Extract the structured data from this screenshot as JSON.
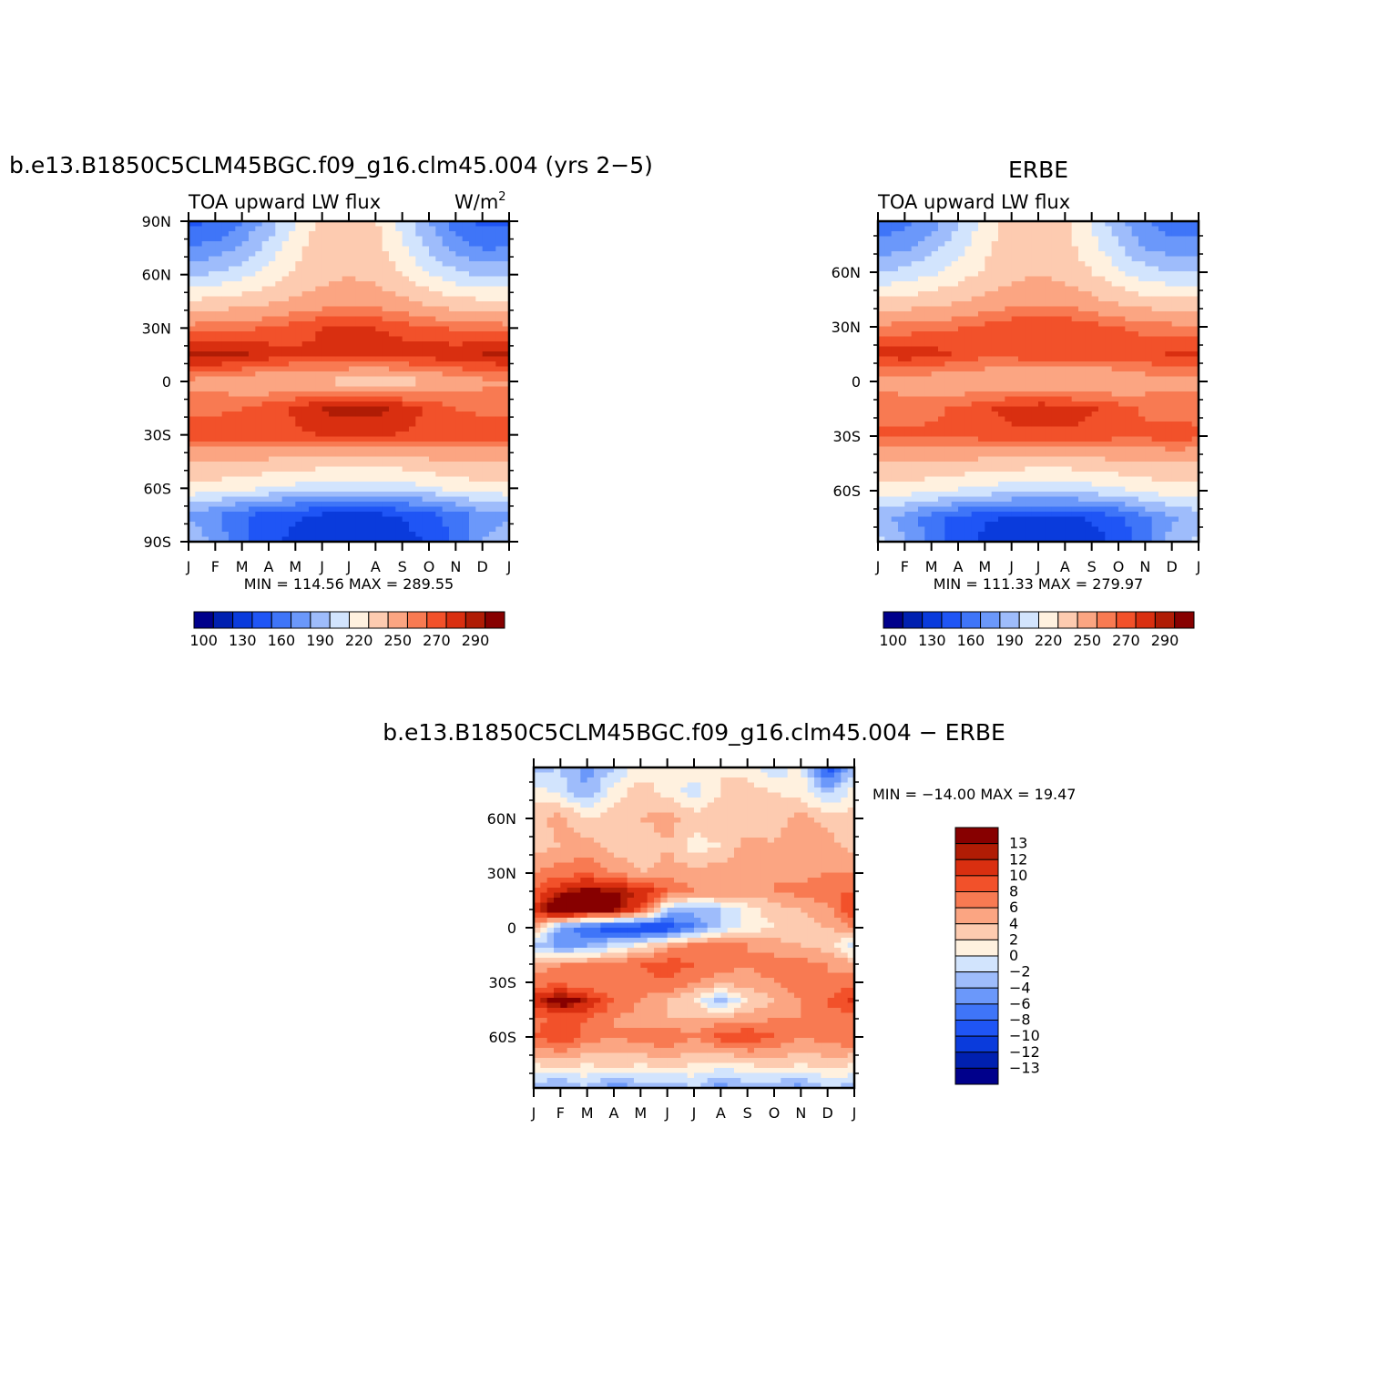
{
  "palette": [
    "#00008b",
    "#0020b0",
    "#0a3bdc",
    "#1f55f5",
    "#3f75f8",
    "#6b98fa",
    "#9ebcfb",
    "#d2e4fd",
    "#fff1df",
    "#fdcbb0",
    "#fba582",
    "#f87a52",
    "#f2512a",
    "#d92f10",
    "#b01c05",
    "#870000"
  ],
  "chart_data": [
    {
      "id": "model",
      "type": "heatmap",
      "title": "b.e13.B1850C5CLM45BGC.f09_g16.clm45.004 (yrs 2−5)",
      "subtitle_left": "TOA upward LW flux",
      "subtitle_right": "W/m",
      "subtitle_right_sup": "2",
      "x_tick_labels": [
        "J",
        "F",
        "M",
        "A",
        "M",
        "J",
        "J",
        "A",
        "S",
        "O",
        "N",
        "D",
        "J"
      ],
      "y_tick_labels": [
        "90N",
        "60N",
        "30N",
        "0",
        "30S",
        "60S",
        "90S"
      ],
      "y_tick_values": [
        90,
        60,
        30,
        0,
        -30,
        -60,
        -90
      ],
      "ylim": [
        -90,
        90
      ],
      "stats_text": "MIN = 114.56 MAX = 289.55",
      "min": 114.56,
      "max": 289.55,
      "colorbar_levels": [
        100,
        115,
        130,
        145,
        160,
        175,
        190,
        205,
        220,
        235,
        250,
        260,
        270,
        280,
        290
      ],
      "colorbar_labels": [
        "100",
        "130",
        "160",
        "190",
        "220",
        "250",
        "270",
        "290"
      ],
      "rows": [
        {
          "lat": 90,
          "values": [
            140,
            145,
            160,
            180,
            205,
            225,
            230,
            222,
            200,
            175,
            152,
            140,
            140
          ]
        },
        {
          "lat": 75,
          "values": [
            160,
            165,
            178,
            195,
            215,
            228,
            232,
            226,
            208,
            188,
            168,
            158,
            160
          ]
        },
        {
          "lat": 60,
          "values": [
            188,
            192,
            200,
            210,
            222,
            230,
            234,
            230,
            220,
            206,
            194,
            188,
            188
          ]
        },
        {
          "lat": 45,
          "values": [
            222,
            224,
            228,
            232,
            238,
            243,
            246,
            244,
            238,
            230,
            225,
            222,
            222
          ]
        },
        {
          "lat": 30,
          "values": [
            255,
            256,
            258,
            261,
            265,
            270,
            272,
            270,
            266,
            262,
            258,
            256,
            255
          ]
        },
        {
          "lat": 15,
          "values": [
            283,
            285,
            282,
            276,
            272,
            273,
            275,
            276,
            276,
            276,
            278,
            281,
            283
          ]
        },
        {
          "lat": 0,
          "values": [
            247,
            244,
            240,
            236,
            236,
            233,
            228,
            226,
            228,
            235,
            243,
            247,
            247
          ]
        },
        {
          "lat": -15,
          "values": [
            258,
            258,
            260,
            265,
            272,
            281,
            286,
            285,
            277,
            267,
            260,
            258,
            258
          ]
        },
        {
          "lat": -30,
          "values": [
            265,
            266,
            266,
            266,
            268,
            270,
            271,
            271,
            269,
            267,
            266,
            265,
            265
          ]
        },
        {
          "lat": -45,
          "values": [
            235,
            235,
            234,
            232,
            230,
            228,
            227,
            227,
            229,
            232,
            234,
            235,
            235
          ]
        },
        {
          "lat": -60,
          "values": [
            215,
            213,
            210,
            205,
            200,
            197,
            195,
            195,
            198,
            203,
            210,
            214,
            215
          ]
        },
        {
          "lat": -75,
          "values": [
            172,
            160,
            148,
            138,
            132,
            128,
            126,
            127,
            131,
            138,
            152,
            166,
            172
          ]
        },
        {
          "lat": -90,
          "values": [
            188,
            172,
            150,
            135,
            125,
            120,
            118,
            119,
            124,
            132,
            150,
            175,
            188
          ]
        }
      ]
    },
    {
      "id": "obs",
      "type": "heatmap",
      "title": "ERBE",
      "subtitle_left": "TOA upward LW flux",
      "x_tick_labels": [
        "J",
        "F",
        "M",
        "A",
        "M",
        "J",
        "J",
        "A",
        "S",
        "O",
        "N",
        "D",
        "J"
      ],
      "y_tick_labels": [
        "60N",
        "30N",
        "0",
        "30S",
        "60S"
      ],
      "y_tick_values": [
        60,
        30,
        0,
        -30,
        -60
      ],
      "ylim": [
        -88,
        88
      ],
      "stats_text": "MIN = 111.33 MAX = 279.97",
      "min": 111.33,
      "max": 279.97,
      "colorbar_levels": [
        100,
        115,
        130,
        145,
        160,
        175,
        190,
        205,
        220,
        235,
        250,
        260,
        270,
        280,
        290
      ],
      "colorbar_labels": [
        "100",
        "130",
        "160",
        "190",
        "220",
        "250",
        "270",
        "290"
      ],
      "rows": [
        {
          "lat": 88,
          "values": [
            150,
            155,
            168,
            188,
            210,
            226,
            230,
            224,
            204,
            180,
            160,
            152,
            150
          ]
        },
        {
          "lat": 75,
          "values": [
            165,
            170,
            182,
            198,
            216,
            228,
            232,
            226,
            210,
            190,
            172,
            165,
            165
          ]
        },
        {
          "lat": 60,
          "values": [
            190,
            194,
            202,
            212,
            222,
            230,
            234,
            230,
            220,
            208,
            196,
            190,
            190
          ]
        },
        {
          "lat": 45,
          "values": [
            222,
            224,
            228,
            232,
            238,
            243,
            246,
            244,
            238,
            230,
            225,
            222,
            222
          ]
        },
        {
          "lat": 30,
          "values": [
            252,
            254,
            256,
            259,
            263,
            267,
            270,
            268,
            264,
            260,
            256,
            253,
            252
          ]
        },
        {
          "lat": 15,
          "values": [
            274,
            276,
            274,
            268,
            264,
            265,
            266,
            267,
            266,
            266,
            268,
            271,
            274
          ]
        },
        {
          "lat": 0,
          "values": [
            247,
            244,
            241,
            238,
            238,
            236,
            233,
            232,
            233,
            238,
            243,
            247,
            247
          ]
        },
        {
          "lat": -15,
          "values": [
            256,
            256,
            258,
            262,
            268,
            275,
            278,
            277,
            271,
            264,
            258,
            256,
            256
          ]
        },
        {
          "lat": -30,
          "values": [
            262,
            262,
            262,
            262,
            264,
            266,
            267,
            267,
            265,
            263,
            262,
            266,
            262
          ]
        },
        {
          "lat": -45,
          "values": [
            234,
            234,
            233,
            231,
            229,
            227,
            226,
            226,
            228,
            231,
            233,
            234,
            234
          ]
        },
        {
          "lat": -60,
          "values": [
            214,
            212,
            209,
            204,
            199,
            196,
            194,
            194,
            197,
            202,
            209,
            213,
            214
          ]
        },
        {
          "lat": -75,
          "values": [
            180,
            168,
            152,
            140,
            132,
            128,
            126,
            127,
            131,
            140,
            158,
            172,
            180
          ]
        },
        {
          "lat": -88,
          "values": [
            195,
            178,
            155,
            138,
            126,
            120,
            116,
            118,
            124,
            134,
            156,
            182,
            195
          ]
        }
      ]
    },
    {
      "id": "diff",
      "type": "heatmap",
      "title": "b.e13.B1850C5CLM45BGC.f09_g16.clm45.004 − ERBE",
      "x_tick_labels": [
        "J",
        "F",
        "M",
        "A",
        "M",
        "J",
        "J",
        "A",
        "S",
        "O",
        "N",
        "D",
        "J"
      ],
      "y_tick_labels": [
        "60N",
        "30N",
        "0",
        "30S",
        "60S"
      ],
      "y_tick_values": [
        60,
        30,
        0,
        -30,
        -60
      ],
      "ylim": [
        -88,
        88
      ],
      "stats_text": "MIN = −14.00 MAX =   19.47",
      "min": -14.0,
      "max": 19.47,
      "colorbar_levels": [
        -13,
        -12,
        -10,
        -8,
        -6,
        -4,
        -2,
        0,
        2,
        4,
        6,
        8,
        10,
        12,
        13
      ],
      "colorbar_labels": [
        "13",
        "12",
        "10",
        "8",
        "6",
        "4",
        "2",
        "0",
        "−2",
        "−4",
        "−6",
        "−8",
        "−10",
        "−12",
        "−13"
      ],
      "rows": [
        {
          "lat": 88,
          "values": [
            -3,
            -2,
            -5,
            -2,
            1,
            2,
            1,
            2,
            1,
            -2,
            1,
            -10,
            -3
          ]
        },
        {
          "lat": 75,
          "values": [
            1,
            -1,
            -4,
            1,
            3,
            1,
            -1,
            2,
            3,
            2,
            1,
            -3,
            1
          ]
        },
        {
          "lat": 60,
          "values": [
            3,
            5,
            2,
            3,
            4,
            5,
            3,
            4,
            2,
            3,
            5,
            3,
            3
          ]
        },
        {
          "lat": 45,
          "values": [
            3,
            4,
            5,
            3,
            2,
            4,
            1,
            2,
            5,
            4,
            6,
            5,
            3
          ]
        },
        {
          "lat": 30,
          "values": [
            6,
            7,
            8,
            6,
            4,
            5,
            5,
            5,
            6,
            6,
            5,
            6,
            6
          ]
        },
        {
          "lat": 20,
          "values": [
            8,
            12,
            14,
            13,
            12,
            8,
            6,
            6,
            5,
            6,
            7,
            8,
            8
          ]
        },
        {
          "lat": 10,
          "values": [
            10,
            19,
            15,
            14,
            10,
            -2,
            -3,
            -2,
            1,
            3,
            4,
            5,
            10
          ]
        },
        {
          "lat": 0,
          "values": [
            6,
            -5,
            -8,
            -10,
            -11,
            -10,
            -6,
            -2,
            1,
            2,
            3,
            4,
            6
          ]
        },
        {
          "lat": -10,
          "values": [
            -2,
            -5,
            -4,
            -1,
            1,
            5,
            7,
            8,
            6,
            5,
            4,
            3,
            -2
          ]
        },
        {
          "lat": -20,
          "values": [
            5,
            6,
            6,
            7,
            8,
            9,
            8,
            7,
            6,
            7,
            7,
            6,
            5
          ]
        },
        {
          "lat": -30,
          "values": [
            7,
            7,
            6,
            6,
            7,
            8,
            6,
            5,
            5,
            6,
            7,
            6,
            7
          ]
        },
        {
          "lat": -40,
          "values": [
            11,
            15,
            12,
            8,
            6,
            4,
            2,
            -4,
            2,
            4,
            6,
            8,
            11
          ]
        },
        {
          "lat": -50,
          "values": [
            7,
            9,
            8,
            6,
            5,
            4,
            4,
            5,
            5,
            6,
            6,
            7,
            7
          ]
        },
        {
          "lat": -60,
          "values": [
            8,
            10,
            7,
            6,
            7,
            8,
            6,
            9,
            10,
            8,
            6,
            7,
            8
          ]
        },
        {
          "lat": -75,
          "values": [
            2,
            3,
            2,
            3,
            2,
            3,
            2,
            1,
            2,
            3,
            2,
            3,
            2
          ]
        },
        {
          "lat": -88,
          "values": [
            -3,
            -5,
            -2,
            -6,
            -3,
            -4,
            -2,
            -5,
            -3,
            -4,
            -5,
            -2,
            -3
          ]
        }
      ]
    }
  ]
}
